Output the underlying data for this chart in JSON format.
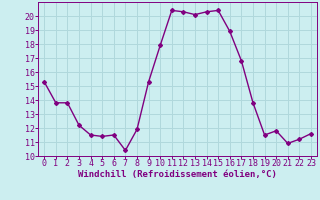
{
  "x": [
    0,
    1,
    2,
    3,
    4,
    5,
    6,
    7,
    8,
    9,
    10,
    11,
    12,
    13,
    14,
    15,
    16,
    17,
    18,
    19,
    20,
    21,
    22,
    23
  ],
  "y": [
    15.3,
    13.8,
    13.8,
    12.2,
    11.5,
    11.4,
    11.5,
    10.4,
    11.9,
    15.3,
    17.9,
    20.4,
    20.3,
    20.1,
    20.3,
    20.4,
    18.9,
    16.8,
    13.8,
    11.5,
    11.8,
    10.9,
    11.2,
    11.6
  ],
  "line_color": "#800080",
  "bg_color": "#cceef0",
  "grid_color": "#b0d8dc",
  "xlabel": "Windchill (Refroidissement éolien,°C)",
  "xlabel_color": "#800080",
  "ylim": [
    10,
    21
  ],
  "xlim": [
    -0.5,
    23.5
  ],
  "yticks": [
    10,
    11,
    12,
    13,
    14,
    15,
    16,
    17,
    18,
    19,
    20
  ],
  "xticks": [
    0,
    1,
    2,
    3,
    4,
    5,
    6,
    7,
    8,
    9,
    10,
    11,
    12,
    13,
    14,
    15,
    16,
    17,
    18,
    19,
    20,
    21,
    22,
    23
  ],
  "tick_color": "#800080",
  "marker": "D",
  "marker_size": 2.0,
  "line_width": 1.0,
  "tick_fontsize": 6.0,
  "xlabel_fontsize": 6.5
}
